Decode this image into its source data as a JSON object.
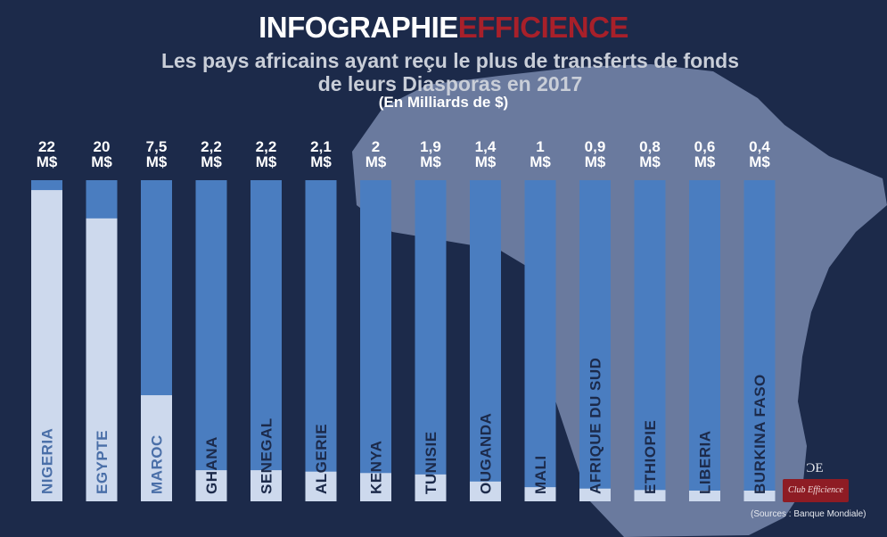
{
  "header": {
    "title_part1": "INFOGRAPHIE",
    "title_part2": "EFFICIENCE",
    "subtitle_line1": "Les pays africains ayant reçu le plus de transferts de fonds",
    "subtitle_line2": "de leurs Diasporas en 2017",
    "unit": "(En Milliards de $)"
  },
  "chart_data": {
    "type": "bar",
    "categories": [
      "NIGERIA",
      "EGYPTE",
      "MAROC",
      "GHANA",
      "SENEGAL",
      "ALGERIE",
      "KENYA",
      "TUNISIE",
      "OUGANDA",
      "MALI",
      "AFRIQUE DU SUD",
      "ETHIOPIE",
      "LIBERIA",
      "BURKINA FASO"
    ],
    "values": [
      22,
      20,
      7.5,
      2.2,
      2.2,
      2.1,
      2,
      1.9,
      1.4,
      1,
      0.9,
      0.8,
      0.6,
      0.4
    ],
    "value_labels": [
      "22\nM$",
      "20\nM$",
      "7,5\nM$",
      "2,2\nM$",
      "2,2\nM$",
      "2,1\nM$",
      "2\nM$",
      "1,9\nM$",
      "1,4\nM$",
      "1\nM$",
      "0,9\nM$",
      "0,8\nM$",
      "0,6\nM$",
      "0,4\nM$"
    ],
    "ylim": [
      0,
      22.7
    ],
    "title": "Les pays africains ayant reçu le plus de transferts de fonds de leurs Diasporas en 2017",
    "ylabel": "(En Milliards de $)",
    "grid": false,
    "legend": "none"
  },
  "colors": {
    "background": "#1c2a4a",
    "map": "#6a7a9e",
    "bar_track": "#4a7dc0",
    "bar_fill": "#cdd9ed",
    "label_on_fill": "#4a6fa8",
    "label_on_track": "#1c2a4a",
    "accent_red": "#a8202a"
  },
  "logo": {
    "mark": "ƆE",
    "text": "Club Efficience"
  },
  "source": "(Sources : Banque Mondiale)"
}
